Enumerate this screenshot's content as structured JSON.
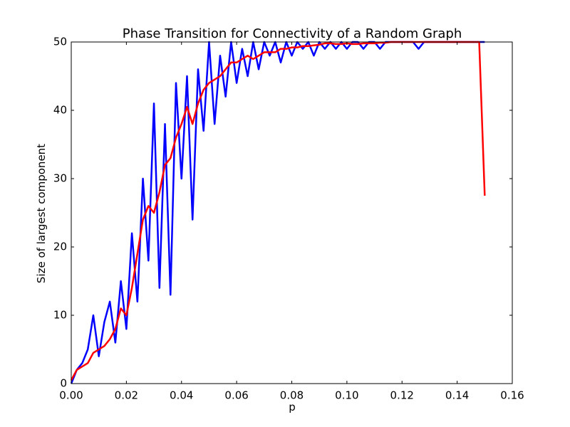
{
  "chart_data": {
    "type": "line",
    "title": "Phase Transition for Connectivity of a Random Graph",
    "x_label": "p",
    "y_label": "Size of largest component",
    "x": [
      0,
      0.002,
      0.004,
      0.006,
      0.008,
      0.01,
      0.012,
      0.014,
      0.016,
      0.018,
      0.02,
      0.022,
      0.024,
      0.026,
      0.028,
      0.03,
      0.032,
      0.034,
      0.036,
      0.038,
      0.04,
      0.042,
      0.044,
      0.046,
      0.048,
      0.05,
      0.052,
      0.054,
      0.056,
      0.058,
      0.06,
      0.062,
      0.064,
      0.066,
      0.068,
      0.07,
      0.072,
      0.074,
      0.076,
      0.078,
      0.08,
      0.082,
      0.084,
      0.086,
      0.088,
      0.09,
      0.092,
      0.094,
      0.096,
      0.098,
      0.1,
      0.102,
      0.104,
      0.106,
      0.108,
      0.11,
      0.112,
      0.114,
      0.116,
      0.118,
      0.12,
      0.122,
      0.124,
      0.126,
      0.128,
      0.13,
      0.132,
      0.134,
      0.136,
      0.138,
      0.14,
      0.142,
      0.144,
      0.146,
      0.148,
      0.15
    ],
    "series": [
      {
        "color": "#0000ff",
        "width": 2.5,
        "values": [
          0,
          2,
          3,
          5,
          10,
          4,
          9,
          12,
          6,
          15,
          8,
          22,
          12,
          30,
          18,
          41,
          14,
          38,
          13,
          44,
          30,
          45,
          24,
          46,
          37,
          50,
          38,
          48,
          42,
          50,
          44,
          49,
          45,
          50,
          46,
          50,
          48,
          50,
          47,
          50,
          48,
          50,
          49,
          50,
          48,
          50,
          49,
          50,
          49,
          50,
          49,
          50,
          50,
          49,
          50,
          50,
          49,
          50,
          50,
          50,
          50,
          50,
          50,
          49,
          50,
          50,
          50,
          50,
          50,
          50,
          50,
          50,
          50,
          50,
          50,
          50
        ]
      },
      {
        "color": "#ff0000",
        "width": 2.5,
        "values": [
          0.5,
          2,
          2.5,
          3,
          4.5,
          5,
          5.5,
          6.5,
          8,
          11,
          10,
          14,
          19,
          24,
          26,
          25,
          28,
          32,
          33,
          36,
          38,
          40.5,
          38,
          41,
          43,
          44,
          44.5,
          45,
          46,
          47,
          47,
          47.5,
          48,
          47.5,
          48,
          48.5,
          48.5,
          48.5,
          49,
          49,
          49.2,
          49.2,
          49.4,
          49.4,
          49.5,
          49.6,
          49.8,
          49.8,
          49.7,
          49.7,
          49.8,
          49.7,
          49.7,
          49.8,
          49.8,
          49.8,
          49.9,
          49.9,
          50,
          50,
          50,
          50,
          50,
          50,
          50,
          50,
          50,
          50,
          50,
          50,
          50,
          50,
          50,
          50,
          50,
          27.5
        ]
      }
    ],
    "xlim": [
      0,
      0.16
    ],
    "ylim": [
      0,
      50
    ],
    "xticks": [
      {
        "value": 0,
        "label": "0.00"
      },
      {
        "value": 0.02,
        "label": "0.02"
      },
      {
        "value": 0.04,
        "label": "0.04"
      },
      {
        "value": 0.06,
        "label": "0.06"
      },
      {
        "value": 0.08,
        "label": "0.08"
      },
      {
        "value": 0.1,
        "label": "0.10"
      },
      {
        "value": 0.12,
        "label": "0.12"
      },
      {
        "value": 0.14,
        "label": "0.14"
      },
      {
        "value": 0.16,
        "label": "0.16"
      }
    ],
    "yticks": [
      0,
      10,
      20,
      30,
      40,
      50
    ],
    "grid": false
  }
}
